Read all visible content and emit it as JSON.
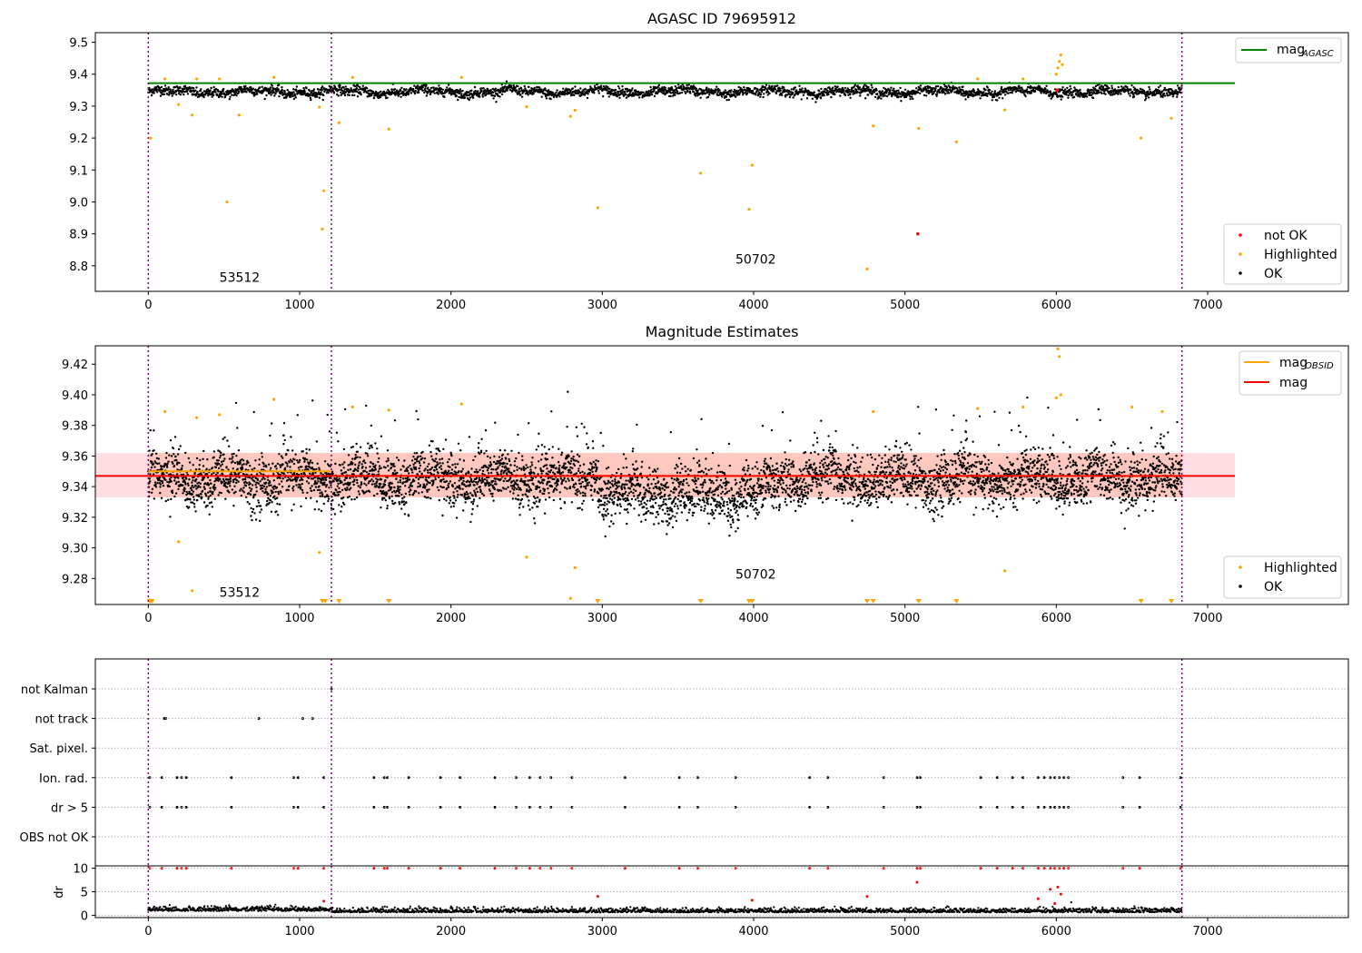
{
  "figure": {
    "background": "#ffffff",
    "vline_color": "#7a007a",
    "x_ticks": [
      0,
      1000,
      2000,
      3000,
      4000,
      5000,
      6000,
      7000
    ],
    "vlines_x": [
      0,
      1210,
      6830
    ]
  },
  "chart_data": [
    {
      "type": "scatter",
      "title": "AGASC ID 79695912",
      "xlim": [
        -350,
        7930
      ],
      "ylim": [
        8.72,
        9.53
      ],
      "yticks": [
        "9.5",
        "9.4",
        "9.3",
        "9.2",
        "9.1",
        "9.0",
        "8.9",
        "8.8"
      ],
      "ytick_values": [
        9.5,
        9.4,
        9.3,
        9.2,
        9.1,
        9.0,
        8.9,
        8.8
      ],
      "legend_upper": {
        "position": "upper-right",
        "entries": [
          {
            "label": "mag",
            "subscript": "AGASC",
            "color": "#008000",
            "kind": "line"
          }
        ]
      },
      "legend_lower": {
        "position": "lower-right",
        "entries": [
          {
            "label": "not OK",
            "color": "#ff0000",
            "kind": "dot"
          },
          {
            "label": "Highlighted",
            "color": "#ffa500",
            "kind": "dot"
          },
          {
            "label": "OK",
            "color": "#000000",
            "kind": "dot"
          }
        ]
      },
      "hline": {
        "y": 9.372,
        "x_range": [
          0,
          7180
        ],
        "color": "#008000",
        "name": "mag_AGASC"
      },
      "ok_band": {
        "center": 9.345,
        "half_width": 0.013,
        "x_range": [
          0,
          6830
        ],
        "color": "#000000"
      },
      "annotations": [
        {
          "text": "53512",
          "x": 470,
          "y": 8.75
        },
        {
          "text": "50702",
          "x": 3880,
          "y": 8.807
        }
      ],
      "highlighted_points": [
        [
          15,
          9.2
        ],
        [
          200,
          9.305
        ],
        [
          290,
          9.272
        ],
        [
          520,
          9.0
        ],
        [
          600,
          9.272
        ],
        [
          1130,
          9.297
        ],
        [
          1160,
          9.035
        ],
        [
          1150,
          8.915
        ],
        [
          1260,
          9.248
        ],
        [
          1590,
          9.228
        ],
        [
          2500,
          9.298
        ],
        [
          2790,
          9.268
        ],
        [
          2820,
          9.287
        ],
        [
          2970,
          8.982
        ],
        [
          3650,
          9.09
        ],
        [
          3970,
          8.977
        ],
        [
          3990,
          9.115
        ],
        [
          4750,
          8.79
        ],
        [
          4790,
          9.238
        ],
        [
          5090,
          9.23
        ],
        [
          5340,
          9.188
        ],
        [
          5660,
          9.288
        ],
        [
          6560,
          9.2
        ],
        [
          6760,
          9.262
        ],
        [
          6010,
          9.42
        ],
        [
          6020,
          9.44
        ],
        [
          6030,
          9.46
        ],
        [
          6040,
          9.43
        ],
        [
          6000,
          9.4
        ],
        [
          110,
          9.385
        ],
        [
          320,
          9.385
        ],
        [
          470,
          9.385
        ],
        [
          830,
          9.39
        ],
        [
          1350,
          9.39
        ],
        [
          2070,
          9.39
        ],
        [
          5480,
          9.385
        ],
        [
          5780,
          9.385
        ]
      ],
      "not_ok_points": [
        [
          5085,
          8.9
        ],
        [
          6005,
          9.35
        ]
      ]
    },
    {
      "type": "scatter",
      "title": "Magnitude Estimates",
      "xlim": [
        -350,
        7930
      ],
      "ylim": [
        9.263,
        9.432
      ],
      "yticks": [
        "9.42",
        "9.40",
        "9.38",
        "9.36",
        "9.34",
        "9.32",
        "9.30",
        "9.28"
      ],
      "ytick_values": [
        9.42,
        9.4,
        9.38,
        9.36,
        9.34,
        9.32,
        9.3,
        9.28
      ],
      "legend_upper": {
        "position": "upper-right",
        "entries": [
          {
            "label": "mag",
            "subscript": "OBSID",
            "color": "#ffa500",
            "kind": "line"
          },
          {
            "label": "mag",
            "color": "#ff0000",
            "kind": "line"
          }
        ]
      },
      "legend_lower": {
        "position": "lower-right",
        "entries": [
          {
            "label": "Highlighted",
            "color": "#ffa500",
            "kind": "dot"
          },
          {
            "label": "OK",
            "color": "#000000",
            "kind": "dot"
          }
        ]
      },
      "mag_line": {
        "y": 9.347,
        "x_range": [
          -350,
          7180
        ],
        "color": "#ff0000"
      },
      "mag_band": {
        "low": 9.333,
        "high": 9.362,
        "x_range": [
          -350,
          7180
        ],
        "color": "#ffb6c1"
      },
      "obsid_band": {
        "low": 9.333,
        "high": 9.362,
        "x_range": [
          0,
          6830
        ],
        "color": "#ffa07a"
      },
      "annotations": [
        {
          "text": "53512",
          "x": 470,
          "y": 9.268
        },
        {
          "text": "50702",
          "x": 3880,
          "y": 9.28
        }
      ],
      "highlighted_points": [
        [
          15,
          9.265
        ],
        [
          200,
          9.304
        ],
        [
          290,
          9.272
        ],
        [
          1130,
          9.297
        ],
        [
          2500,
          9.294
        ],
        [
          2820,
          9.287
        ],
        [
          2790,
          9.267
        ],
        [
          5660,
          9.285
        ],
        [
          110,
          9.389
        ],
        [
          320,
          9.385
        ],
        [
          470,
          9.387
        ],
        [
          830,
          9.397
        ],
        [
          1350,
          9.392
        ],
        [
          1590,
          9.39
        ],
        [
          2070,
          9.394
        ],
        [
          4790,
          9.389
        ],
        [
          5480,
          9.391
        ],
        [
          5780,
          9.392
        ],
        [
          6010,
          9.43
        ],
        [
          6020,
          9.425
        ],
        [
          6030,
          9.4
        ],
        [
          6000,
          9.398
        ],
        [
          6500,
          9.392
        ],
        [
          6700,
          9.389
        ]
      ],
      "floor_markers_x": [
        10,
        25,
        1150,
        1170,
        1260,
        1590,
        2970,
        3650,
        3970,
        3990,
        4750,
        4790,
        5090,
        5340,
        6560,
        6760
      ]
    },
    {
      "type": "scatter",
      "title": "",
      "xlim": [
        -350,
        7930
      ],
      "flag_rows": [
        "not Kalman",
        "not track",
        "Sat. pixel.",
        "Ion. rad.",
        "dr > 5",
        "OBS not OK"
      ],
      "flag_points": {
        "not Kalman": [
          1210
        ],
        "not track": [
          105,
          115,
          730,
          1020,
          1085
        ],
        "Sat. pixel.": [],
        "Ion. rad.": [
          10,
          90,
          190,
          220,
          250,
          550,
          960,
          990,
          1160,
          1490,
          1560,
          1580,
          1720,
          1930,
          2060,
          2290,
          2430,
          2520,
          2590,
          2660,
          2800,
          3150,
          3510,
          3630,
          3880,
          4370,
          4490,
          4860,
          5080,
          5100,
          5500,
          5610,
          5710,
          5780,
          5880,
          5920,
          5960,
          5990,
          6020,
          6050,
          6080,
          6440,
          6550,
          6820
        ],
        "dr > 5": [
          10,
          90,
          190,
          220,
          250,
          550,
          960,
          990,
          1160,
          1490,
          1560,
          1580,
          1720,
          1930,
          2060,
          2290,
          2430,
          2520,
          2590,
          2660,
          2800,
          3150,
          3510,
          3630,
          3880,
          4370,
          4490,
          4860,
          5080,
          5100,
          5500,
          5610,
          5710,
          5780,
          5880,
          5920,
          5960,
          5990,
          6020,
          6050,
          6080,
          6440,
          6550,
          6820
        ],
        "OBS not OK": []
      },
      "dr_panel": {
        "ylabel": "dr",
        "ylim": [
          -0.5,
          10.5
        ],
        "yticks": [
          "10",
          "5",
          "0"
        ],
        "ytick_values": [
          10,
          5,
          0
        ],
        "red_points": [
          [
            10,
            10
          ],
          [
            90,
            10
          ],
          [
            190,
            10
          ],
          [
            220,
            10
          ],
          [
            250,
            10
          ],
          [
            550,
            10
          ],
          [
            960,
            10
          ],
          [
            990,
            10
          ],
          [
            1160,
            10
          ],
          [
            1490,
            10
          ],
          [
            1560,
            10
          ],
          [
            1580,
            10
          ],
          [
            1720,
            10
          ],
          [
            1930,
            10
          ],
          [
            2060,
            10
          ],
          [
            2290,
            10
          ],
          [
            2430,
            10
          ],
          [
            2520,
            10
          ],
          [
            2590,
            10
          ],
          [
            2660,
            10
          ],
          [
            2800,
            10
          ],
          [
            3150,
            10
          ],
          [
            3510,
            10
          ],
          [
            3630,
            10
          ],
          [
            3880,
            10
          ],
          [
            4370,
            10
          ],
          [
            4490,
            10
          ],
          [
            4860,
            10
          ],
          [
            5080,
            10
          ],
          [
            5100,
            10
          ],
          [
            5500,
            10
          ],
          [
            5610,
            10
          ],
          [
            5710,
            10
          ],
          [
            5780,
            10
          ],
          [
            5880,
            10
          ],
          [
            5920,
            10
          ],
          [
            5960,
            10
          ],
          [
            5990,
            10
          ],
          [
            6020,
            10
          ],
          [
            6050,
            10
          ],
          [
            6080,
            10
          ],
          [
            6440,
            10
          ],
          [
            6550,
            10
          ],
          [
            6820,
            10
          ],
          [
            5080,
            7.0
          ],
          [
            1160,
            3.0
          ],
          [
            2970,
            4.0
          ],
          [
            3990,
            3.2
          ],
          [
            4750,
            4.0
          ],
          [
            5880,
            3.5
          ],
          [
            5960,
            5.5
          ],
          [
            6010,
            6.0
          ],
          [
            6030,
            4.5
          ],
          [
            5990,
            2.5
          ]
        ],
        "black_points_level": 1.0
      }
    }
  ]
}
